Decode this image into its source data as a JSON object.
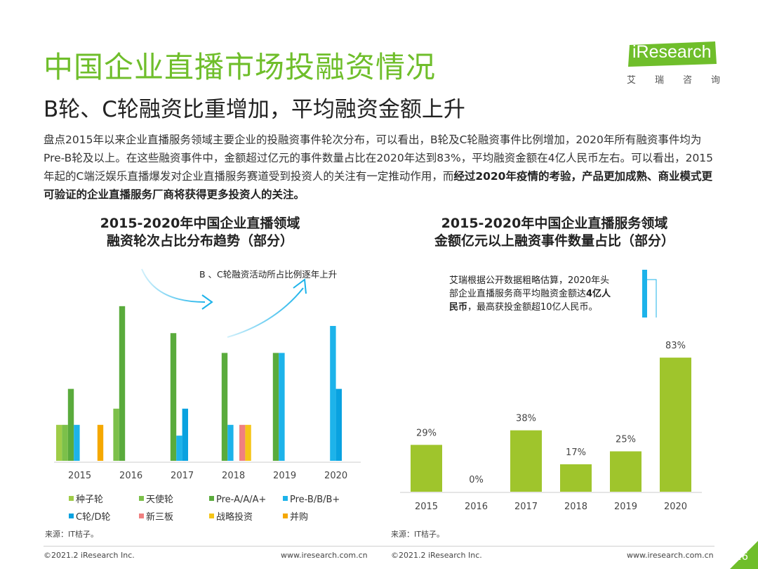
{
  "header": {
    "title": "中国企业直播市场投融资情况",
    "subtitle": "B轮、C轮融资比重增加，平均融资金额上升",
    "logo_brand": "iResearch",
    "logo_chars": [
      "艾",
      "瑞",
      "咨",
      "询"
    ]
  },
  "body": {
    "text_normal": "盘点2015年以来企业直播服务领域主要企业的投融资事件轮次分布，可以看出，B轮及C轮融资事件比例增加，2020年所有融资事件均为Pre-B轮及以上。在这些融资事件中，金额超过亿元的事件数量占比在2020年达到83%，平均融资金额在4亿人民币左右。可以看出，2015年起的C端泛娱乐直播爆发对企业直播服务赛道受到投资人的关注有一定推动作用，而",
    "text_bold": "经过2020年疫情的考验，产品更加成熟、商业模式更可验证的企业直播服务厂商将获得更多投资人的关注。"
  },
  "colors": {
    "accent_green": "#6fbe2b",
    "series_colors": [
      "#9fcc48",
      "#7cc04a",
      "#5aab3c",
      "#1db3ea",
      "#09a2e0",
      "#f08080",
      "#f5c518",
      "#f5a800"
    ],
    "right_bar": "#9fc52c",
    "arrow": "#1db3ea"
  },
  "chart_data": [
    {
      "type": "bar",
      "title": "2015-2020年中国企业直播领域\n融资轮次占比分布趋势（部分）",
      "annotation": "B 、C轮融资活动所占比例逐年上升",
      "categories": [
        "2015",
        "2016",
        "2017",
        "2018",
        "2019",
        "2020"
      ],
      "ylim": [
        0,
        1
      ],
      "grid": false,
      "legend_position": "bottom",
      "series": [
        {
          "name": "种子轮",
          "values": [
            0.2,
            0,
            0,
            0,
            0,
            0
          ]
        },
        {
          "name": "天使轮",
          "values": [
            0.2,
            0.29,
            0,
            0,
            0,
            0
          ]
        },
        {
          "name": "Pre-A/A/A+",
          "values": [
            0.4,
            0.86,
            0.71,
            0.6,
            0.6,
            0
          ]
        },
        {
          "name": "Pre-B/B/B+",
          "values": [
            0.2,
            0,
            0.14,
            0.2,
            0.6,
            0.75
          ]
        },
        {
          "name": "C轮/D轮",
          "values": [
            0,
            0,
            0.29,
            0,
            0,
            0.4
          ]
        },
        {
          "name": "新三板",
          "values": [
            0,
            0,
            0,
            0.2,
            0,
            0
          ]
        },
        {
          "name": "战略投资",
          "values": [
            0,
            0,
            0,
            0.2,
            0,
            0
          ]
        },
        {
          "name": "并购",
          "values": [
            0.2,
            0,
            0,
            0,
            0,
            0
          ]
        }
      ],
      "source": "来源：IT桔子。"
    },
    {
      "type": "bar",
      "title": "2015-2020年中国企业直播服务领域\n金额亿元以上融资事件数量占比（部分）",
      "categories": [
        "2015",
        "2016",
        "2017",
        "2018",
        "2019",
        "2020"
      ],
      "values": [
        29,
        0,
        38,
        17,
        25,
        83
      ],
      "value_labels": [
        "29%",
        "0%",
        "38%",
        "17%",
        "25%",
        "83%"
      ],
      "ylim": [
        0,
        100
      ],
      "grid": false,
      "annotation_normal_1": "艾瑞根据公开数据粗略估算，2020年头部企业直播服务商平均融资金额达",
      "annotation_bold": "4亿人民币",
      "annotation_normal_2": "，最高获投金额超10亿人民币。",
      "source": "来源：IT桔子。"
    }
  ],
  "footer": {
    "copyright_left": "©2021.2 iResearch Inc.",
    "url_left": "www.iresearch.com.cn",
    "copyright_right": "©2021.2 iResearch Inc.",
    "url_right": "www.iresearch.com.cn",
    "page_number": "16"
  }
}
